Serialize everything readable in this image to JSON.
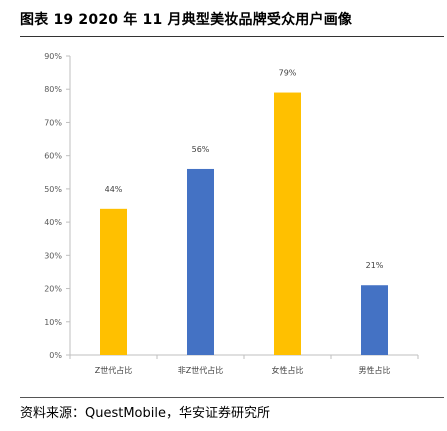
{
  "figure": {
    "title": "图表 19 2020 年 11 月典型美妆品牌受众用户画像",
    "source": "资料来源：QuestMobile，华安证券研究所"
  },
  "chart_data": {
    "type": "bar",
    "categories": [
      "Z世代占比",
      "非Z世代占比",
      "女性占比",
      "男性占比"
    ],
    "values": [
      44,
      56,
      79,
      21
    ],
    "data_labels": [
      "44%",
      "56%",
      "79%",
      "21%"
    ],
    "bar_colors": [
      "#FFC000",
      "#4472C4",
      "#FFC000",
      "#4472C4"
    ],
    "title": "",
    "xlabel": "",
    "ylabel": "",
    "ylim": [
      0,
      90
    ],
    "yticks": [
      "0%",
      "10%",
      "20%",
      "30%",
      "40%",
      "50%",
      "60%",
      "70%",
      "80%",
      "90%"
    ],
    "grid": false,
    "legend": "none"
  }
}
